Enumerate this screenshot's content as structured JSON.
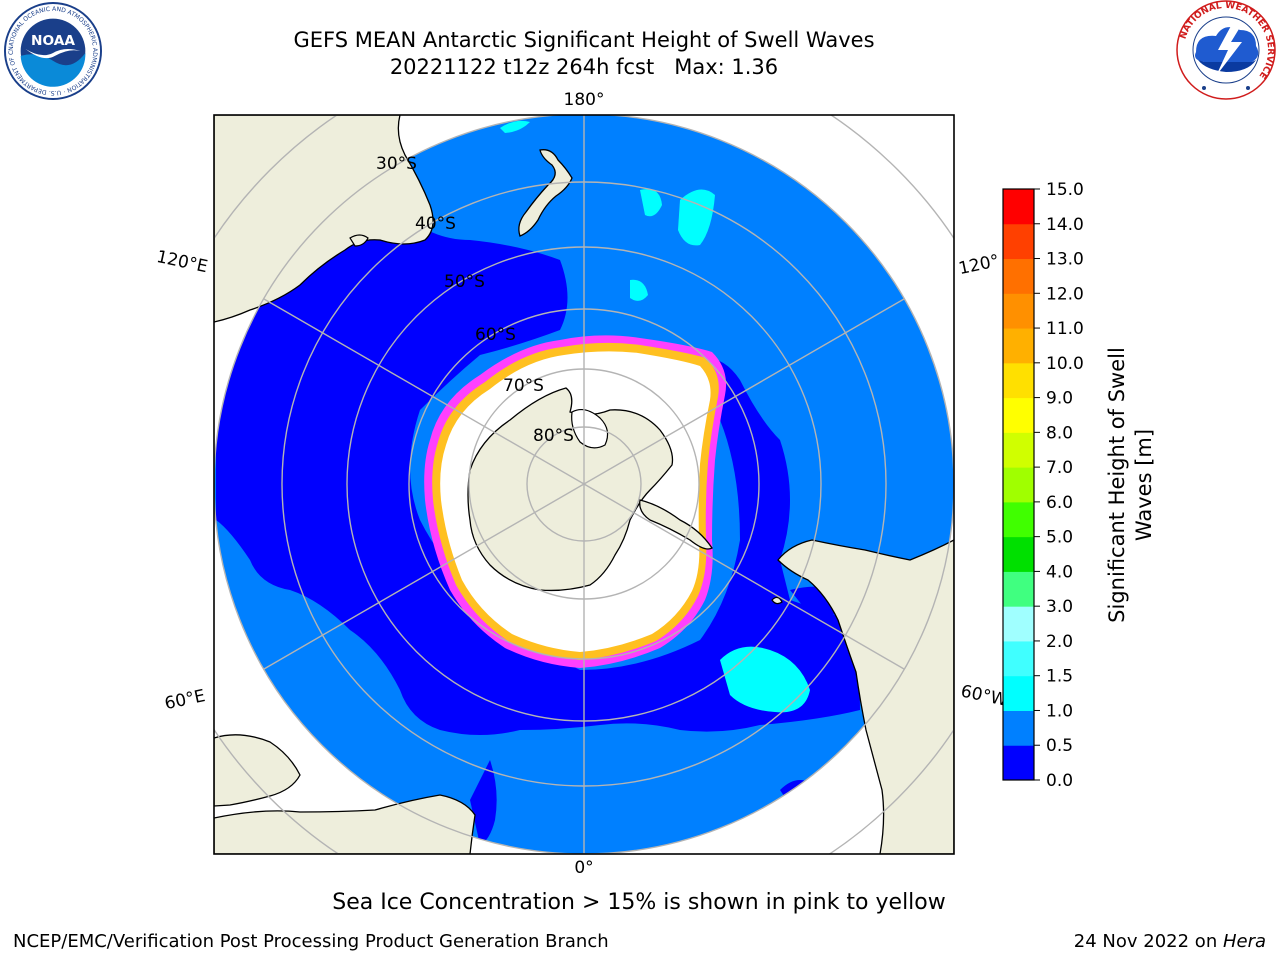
{
  "header": {
    "title_line1": "GEFS MEAN Antarctic Significant Height of Swell Waves",
    "title_line2": "20221122 t12z 264h fcst   Max: 1.36"
  },
  "logos": {
    "noaa_text": "NOAA",
    "noaa_ring_text": "NATIONAL OCEANIC AND ATMOSPHERIC ADMINISTRATION · U.S. DEPARTMENT OF COMMERCE ·",
    "nws_ring_text": "NATIONAL WEATHER SERVICE"
  },
  "map": {
    "projection": "south-polar-stereographic",
    "longitude_labels": {
      "lon_180": "180°",
      "lon_120e": "120°E",
      "lon_120w": "120°",
      "lon_60e": "60°E",
      "lon_60w": "60°W",
      "lon_0": "0°"
    },
    "latitude_labels": [
      "30°S",
      "40°S",
      "50°S",
      "60°S",
      "70°S",
      "80°S"
    ],
    "colors": {
      "land": "#eeeedc",
      "ocean_0_0.5": "#0000ff",
      "ocean_0.5_1.0": "#0080ff",
      "ocean_1.0_1.5": "#00ffff",
      "sea_ice": "#ffffff",
      "ice_edge_pink": "#ff40ff",
      "ice_edge_yellow": "#ffc020",
      "graticule": "#b4b4b4"
    }
  },
  "colorbar": {
    "label_line1": "Significant Height of Swell",
    "label_line2": "Waves [m]",
    "ticks": [
      "0.0",
      "0.5",
      "1.0",
      "1.5",
      "2.0",
      "3.0",
      "4.0",
      "5.0",
      "6.0",
      "7.0",
      "8.0",
      "9.0",
      "10.0",
      "11.0",
      "12.0",
      "13.0",
      "14.0",
      "15.0"
    ],
    "colors": [
      "#0000ff",
      "#0080ff",
      "#00ffff",
      "#40ffff",
      "#a0ffff",
      "#40ff80",
      "#00e000",
      "#40ff00",
      "#a0ff00",
      "#d0ff00",
      "#ffff00",
      "#ffe000",
      "#ffb000",
      "#ff9000",
      "#ff7000",
      "#ff4000",
      "#ff0000"
    ]
  },
  "caption": "Sea Ice Concentration > 15% is shown in pink to yellow",
  "footer": {
    "left": "NCEP/EMC/Verification Post Processing Product Generation Branch",
    "right_prefix": "24 Nov 2022 on ",
    "right_italic": "Hera"
  }
}
